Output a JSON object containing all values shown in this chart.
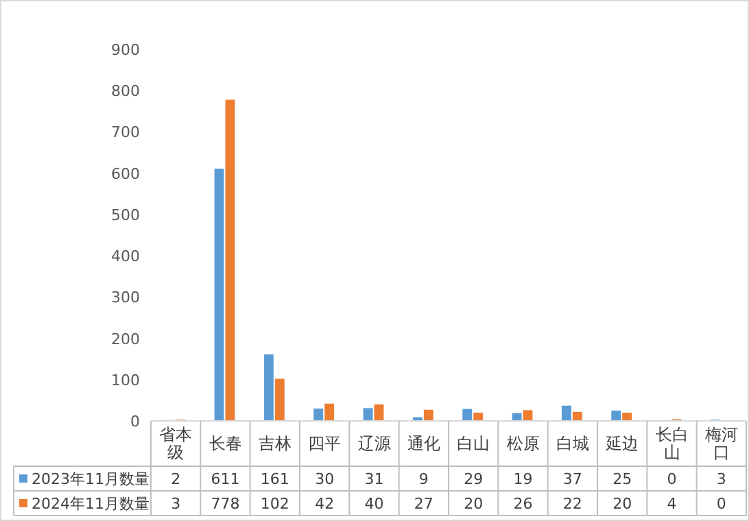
{
  "chart_data": {
    "type": "bar",
    "categories": [
      "省本级",
      "长春",
      "吉林",
      "四平",
      "辽源",
      "通化",
      "白山",
      "松原",
      "白城",
      "延边",
      "长白山",
      "梅河口"
    ],
    "series": [
      {
        "name": "2023年11月数量",
        "color": "#5b9bd5",
        "values": [
          2,
          611,
          161,
          30,
          31,
          9,
          29,
          19,
          37,
          25,
          0,
          3
        ]
      },
      {
        "name": "2024年11月数量",
        "color": "#ed7d31",
        "values": [
          3,
          778,
          102,
          42,
          40,
          27,
          20,
          26,
          22,
          20,
          4,
          0
        ]
      }
    ],
    "ylim": [
      0,
      900
    ],
    "yticks": [
      0,
      100,
      200,
      300,
      400,
      500,
      600,
      700,
      800,
      900
    ],
    "data_labels": true,
    "legend": "bottom",
    "grid": false
  }
}
